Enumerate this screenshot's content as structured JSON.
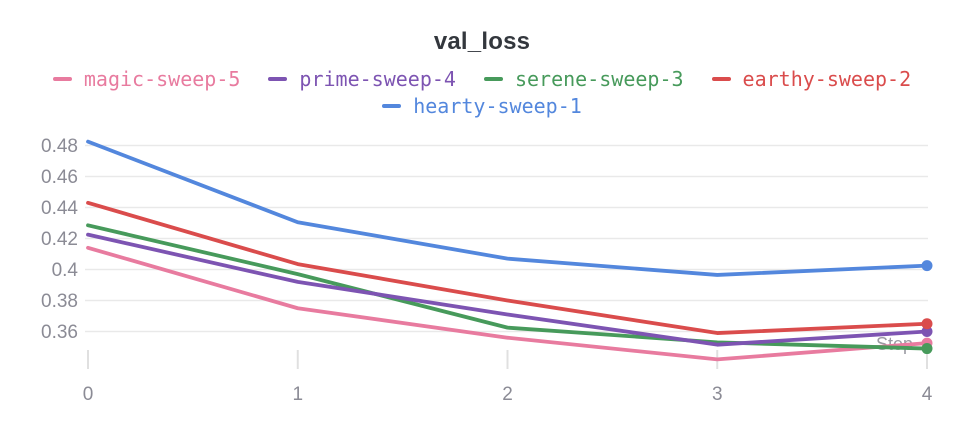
{
  "chart": {
    "title": "val_loss",
    "xlabel": "Step"
  },
  "chart_data": {
    "type": "line",
    "title": "val_loss",
    "xlabel": "Step",
    "ylabel": "",
    "legend_position": "top",
    "grid": "horizontal",
    "x": [
      0,
      1,
      2,
      3,
      4
    ],
    "x_ticks": [
      {
        "label": "0",
        "value": 0
      },
      {
        "label": "1",
        "value": 1
      },
      {
        "label": "2",
        "value": 2
      },
      {
        "label": "3",
        "value": 3
      },
      {
        "label": "4",
        "value": 4
      }
    ],
    "y_ticks": [
      {
        "label": "0.48",
        "value": 0.48
      },
      {
        "label": "0.46",
        "value": 0.46
      },
      {
        "label": "0.44",
        "value": 0.44
      },
      {
        "label": "0.42",
        "value": 0.42
      },
      {
        "label": "0.4",
        "value": 0.4
      },
      {
        "label": "0.38",
        "value": 0.38
      },
      {
        "label": "0.36",
        "value": 0.36
      }
    ],
    "xlim": [
      0,
      4
    ],
    "ylim": [
      0.335,
      0.488
    ],
    "series": [
      {
        "name": "magic-sweep-5",
        "color": "#E87B9F",
        "values": [
          0.414,
          0.375,
          0.356,
          0.342,
          0.3525
        ]
      },
      {
        "name": "prime-sweep-4",
        "color": "#7D54B2",
        "values": [
          0.4225,
          0.392,
          0.371,
          0.3515,
          0.36
        ]
      },
      {
        "name": "serene-sweep-3",
        "color": "#479A5B",
        "values": [
          0.4285,
          0.397,
          0.3625,
          0.353,
          0.349
        ]
      },
      {
        "name": "earthy-sweep-2",
        "color": "#DA4C4C",
        "values": [
          0.443,
          0.4035,
          0.38,
          0.359,
          0.365
        ]
      },
      {
        "name": "hearty-sweep-1",
        "color": "#5387DD",
        "values": [
          0.4825,
          0.4305,
          0.407,
          0.3965,
          0.4025
        ]
      }
    ],
    "draw_order": [
      "hearty-sweep-1",
      "magic-sweep-5",
      "serene-sweep-3",
      "prime-sweep-4",
      "earthy-sweep-2"
    ],
    "end_markers": true,
    "colors": {
      "grid": "#e9e9e9",
      "tick": "#e0e0e0",
      "axis_label": "#8b8b95",
      "title": "#33373d"
    }
  }
}
